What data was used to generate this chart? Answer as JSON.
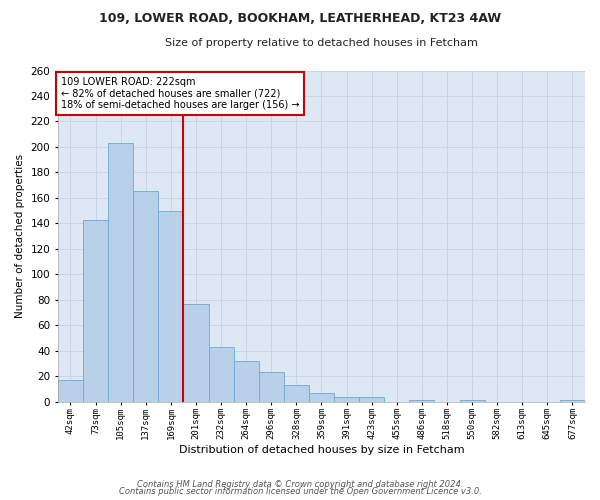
{
  "title_line1": "109, LOWER ROAD, BOOKHAM, LEATHERHEAD, KT23 4AW",
  "title_line2": "Size of property relative to detached houses in Fetcham",
  "xlabel": "Distribution of detached houses by size in Fetcham",
  "ylabel": "Number of detached properties",
  "bins": [
    "42sqm",
    "73sqm",
    "105sqm",
    "137sqm",
    "169sqm",
    "201sqm",
    "232sqm",
    "264sqm",
    "296sqm",
    "328sqm",
    "359sqm",
    "391sqm",
    "423sqm",
    "455sqm",
    "486sqm",
    "518sqm",
    "550sqm",
    "582sqm",
    "613sqm",
    "645sqm",
    "677sqm"
  ],
  "bar_values": [
    17,
    143,
    203,
    165,
    150,
    77,
    43,
    32,
    23,
    13,
    7,
    4,
    4,
    0,
    1,
    0,
    1,
    0,
    0,
    0,
    1
  ],
  "bar_color": "#b8d0e8",
  "bar_edge_color": "#6aaad4",
  "vline_color": "#cc0000",
  "annotation_title": "109 LOWER ROAD: 222sqm",
  "annotation_line1": "← 82% of detached houses are smaller (722)",
  "annotation_line2": "18% of semi-detached houses are larger (156) →",
  "annotation_box_color": "#ffffff",
  "annotation_box_edge": "#cc0000",
  "ylim": [
    0,
    260
  ],
  "yticks": [
    0,
    20,
    40,
    60,
    80,
    100,
    120,
    140,
    160,
    180,
    200,
    220,
    240,
    260
  ],
  "grid_color": "#c8d4e8",
  "plot_bg_color": "#dde8f4",
  "fig_bg_color": "#ffffff",
  "footer_line1": "Contains HM Land Registry data © Crown copyright and database right 2024.",
  "footer_line2": "Contains public sector information licensed under the Open Government Licence v3.0."
}
